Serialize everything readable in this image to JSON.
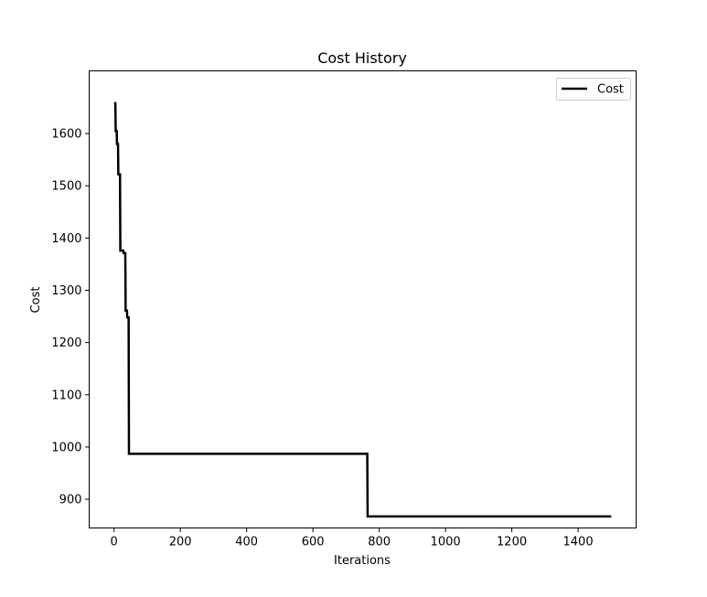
{
  "chart_data": {
    "type": "line",
    "title": "Cost History",
    "xlabel": "Iterations",
    "ylabel": "Cost",
    "xlim": [
      -75,
      1575
    ],
    "ylim": [
      845,
      1720
    ],
    "xticks": [
      0,
      200,
      400,
      600,
      800,
      1000,
      1200,
      1400
    ],
    "yticks": [
      900,
      1000,
      1100,
      1200,
      1300,
      1400,
      1500,
      1600
    ],
    "legend": {
      "placement": "top-right"
    },
    "grid": false,
    "series": [
      {
        "name": "Cost",
        "color": "#000000",
        "step": true,
        "x": [
          0,
          4,
          5,
          8,
          9,
          12,
          13,
          18,
          19,
          28,
          29,
          34,
          35,
          39,
          40,
          44,
          45,
          764,
          765,
          1500
        ],
        "y": [
          1658,
          1658,
          1605,
          1605,
          1580,
          1580,
          1522,
          1522,
          1376,
          1376,
          1371,
          1371,
          1261,
          1261,
          1248,
          1248,
          987,
          987,
          867,
          867
        ]
      }
    ]
  }
}
